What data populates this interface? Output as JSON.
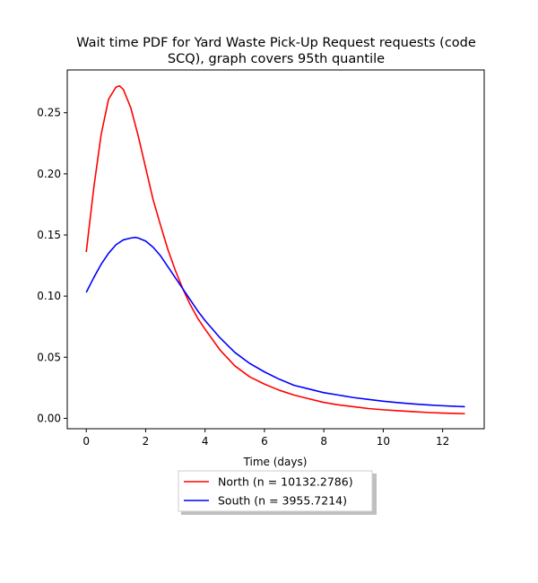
{
  "chart_data": {
    "type": "line",
    "title": "Wait time PDF for Yard Waste Pick-Up Request  requests (code SCQ), graph covers 95th quantile",
    "title_lines": [
      "Wait time PDF for Yard Waste Pick-Up Request  requests (code",
      "SCQ), graph covers 95th quantile"
    ],
    "xlabel": "Time (days)",
    "ylabel": "",
    "xlim": [
      -0.64,
      13.4
    ],
    "ylim": [
      -0.0085,
      0.285
    ],
    "xticks": [
      0,
      2,
      4,
      6,
      8,
      10,
      12
    ],
    "xtick_labels": [
      "0",
      "2",
      "4",
      "6",
      "8",
      "10",
      "12"
    ],
    "yticks": [
      0.0,
      0.05,
      0.1,
      0.15,
      0.2,
      0.25
    ],
    "ytick_labels": [
      "0.00",
      "0.05",
      "0.10",
      "0.15",
      "0.20",
      "0.25"
    ],
    "grid": false,
    "legend_position": "bottom-center, outside",
    "series": [
      {
        "name": "North (n = 10132.2786)",
        "color": "#ff0000",
        "x": [
          0,
          0.25,
          0.5,
          0.75,
          1.0,
          1.12,
          1.25,
          1.5,
          1.75,
          2.0,
          2.25,
          2.5,
          2.75,
          3.0,
          3.25,
          3.5,
          3.75,
          4.0,
          4.5,
          5.0,
          5.5,
          6.0,
          6.5,
          7.0,
          7.5,
          8.0,
          8.5,
          9.0,
          9.5,
          10.0,
          10.5,
          11.0,
          11.5,
          12.0,
          12.75
        ],
        "y": [
          0.136,
          0.188,
          0.232,
          0.261,
          0.271,
          0.272,
          0.269,
          0.254,
          0.231,
          0.205,
          0.179,
          0.158,
          0.138,
          0.121,
          0.106,
          0.093,
          0.082,
          0.073,
          0.056,
          0.043,
          0.034,
          0.028,
          0.023,
          0.019,
          0.016,
          0.013,
          0.011,
          0.0095,
          0.008,
          0.007,
          0.0062,
          0.0055,
          0.0048,
          0.0043,
          0.0038
        ]
      },
      {
        "name": "South (n = 3955.7214)",
        "color": "#0000ff",
        "x": [
          0,
          0.25,
          0.5,
          0.75,
          1.0,
          1.25,
          1.5,
          1.65,
          1.75,
          2.0,
          2.25,
          2.5,
          2.75,
          3.0,
          3.25,
          3.5,
          3.75,
          4.0,
          4.5,
          5.0,
          5.5,
          6.0,
          6.5,
          7.0,
          7.5,
          8.0,
          8.5,
          9.0,
          9.5,
          10.0,
          10.5,
          11.0,
          11.5,
          12.0,
          12.75
        ],
        "y": [
          0.103,
          0.115,
          0.126,
          0.135,
          0.142,
          0.146,
          0.1475,
          0.148,
          0.1475,
          0.145,
          0.14,
          0.133,
          0.124,
          0.115,
          0.106,
          0.097,
          0.088,
          0.08,
          0.066,
          0.054,
          0.045,
          0.038,
          0.032,
          0.027,
          0.024,
          0.021,
          0.019,
          0.017,
          0.0155,
          0.014,
          0.0128,
          0.0118,
          0.011,
          0.0103,
          0.0095
        ]
      }
    ]
  }
}
